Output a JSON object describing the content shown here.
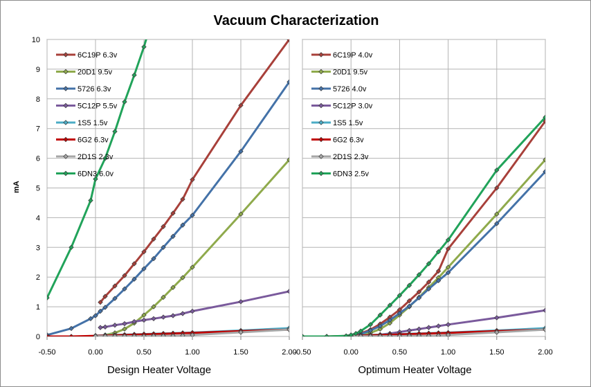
{
  "title": "Vacuum Characterization",
  "chart_data": {
    "type": "line",
    "title": "Vacuum Characterization",
    "ylabel": "mA",
    "ylim": [
      0,
      10
    ],
    "yticks": [
      0,
      1,
      2,
      3,
      4,
      5,
      6,
      7,
      8,
      9,
      10
    ],
    "xlim": [
      -0.5,
      2.0
    ],
    "xticks": [
      "-0.50",
      "0.00",
      "0.50",
      "1.00",
      "1.50",
      "2.00"
    ],
    "grid": true,
    "legend_position": "top-left",
    "panels": [
      {
        "xlabel": "Design Heater Voltage",
        "series": [
          {
            "name": "6C19P 6.3v",
            "color": "#a8403a",
            "x": [
              0.05,
              0.1,
              0.2,
              0.3,
              0.4,
              0.5,
              0.6,
              0.7,
              0.8,
              0.9,
              1.0,
              1.5,
              2.0
            ],
            "y": [
              1.15,
              1.35,
              1.7,
              2.05,
              2.45,
              2.85,
              3.28,
              3.7,
              4.15,
              4.62,
              5.28,
              7.78,
              10.0
            ]
          },
          {
            "name": "20D1 9.5v",
            "color": "#8faa4c",
            "x": [
              0.0,
              0.1,
              0.2,
              0.3,
              0.4,
              0.5,
              0.6,
              0.7,
              0.8,
              0.9,
              1.0,
              1.5,
              2.0
            ],
            "y": [
              0.0,
              0.05,
              0.12,
              0.25,
              0.45,
              0.72,
              1.0,
              1.32,
              1.65,
              1.98,
              2.33,
              4.12,
              5.95
            ]
          },
          {
            "name": "5726 6.3v",
            "color": "#4472a8",
            "x": [
              -0.5,
              -0.25,
              -0.05,
              0.0,
              0.05,
              0.1,
              0.2,
              0.3,
              0.4,
              0.5,
              0.6,
              0.7,
              0.8,
              0.9,
              1.0,
              1.5,
              2.0
            ],
            "y": [
              0.05,
              0.27,
              0.6,
              0.7,
              0.85,
              0.98,
              1.28,
              1.6,
              1.93,
              2.28,
              2.62,
              3.0,
              3.37,
              3.75,
              4.08,
              6.23,
              8.57
            ]
          },
          {
            "name": "5C12P 5.5v",
            "color": "#7a5a9c",
            "x": [
              0.05,
              0.1,
              0.2,
              0.3,
              0.4,
              0.5,
              0.6,
              0.7,
              0.8,
              0.9,
              1.0,
              1.5,
              2.0
            ],
            "y": [
              0.3,
              0.32,
              0.38,
              0.43,
              0.5,
              0.55,
              0.6,
              0.65,
              0.7,
              0.77,
              0.85,
              1.17,
              1.52
            ]
          },
          {
            "name": "1S5 1.5v",
            "color": "#4bacc6",
            "x": [
              0.0,
              0.1,
              0.2,
              0.3,
              0.4,
              0.5,
              0.6,
              0.7,
              0.8,
              0.9,
              1.0,
              1.5,
              2.0
            ],
            "y": [
              0.03,
              0.04,
              0.05,
              0.06,
              0.07,
              0.08,
              0.09,
              0.1,
              0.11,
              0.12,
              0.13,
              0.2,
              0.28
            ]
          },
          {
            "name": "6G2 6.3v",
            "color": "#c00000",
            "x": [
              -0.5,
              -0.25,
              0.0,
              0.1,
              0.2,
              0.3,
              0.4,
              0.5,
              0.6,
              0.7,
              0.8,
              0.9,
              1.0,
              1.5,
              2.0
            ],
            "y": [
              0.0,
              0.0,
              0.02,
              0.03,
              0.04,
              0.05,
              0.06,
              0.07,
              0.08,
              0.09,
              0.1,
              0.11,
              0.12,
              0.18,
              0.23
            ]
          },
          {
            "name": "2D1S 2.3v",
            "color": "#a6a6a6",
            "x": [
              0.0,
              0.1,
              0.2,
              0.3,
              0.4,
              0.5,
              0.6,
              0.7,
              0.8,
              0.9,
              1.0,
              1.5,
              2.0
            ],
            "y": [
              0.01,
              0.01,
              0.01,
              0.01,
              0.01,
              0.01,
              0.02,
              0.02,
              0.02,
              0.03,
              0.05,
              0.14,
              0.23
            ]
          },
          {
            "name": "6DN3 6.0v",
            "color": "#21a35a",
            "x": [
              -0.5,
              -0.25,
              -0.05,
              0.0,
              0.1,
              0.2,
              0.3,
              0.4,
              0.5,
              0.55
            ],
            "y": [
              1.3,
              3.0,
              4.58,
              5.3,
              6.0,
              6.9,
              7.9,
              8.8,
              9.75,
              10.3
            ]
          }
        ]
      },
      {
        "xlabel": "Optimum Heater Voltage",
        "series": [
          {
            "name": "6C19P 4.0v",
            "color": "#a8403a",
            "x": [
              0.0,
              0.05,
              0.1,
              0.2,
              0.3,
              0.4,
              0.5,
              0.6,
              0.7,
              0.8,
              0.9,
              1.0,
              1.5,
              2.0
            ],
            "y": [
              0.02,
              0.06,
              0.1,
              0.23,
              0.42,
              0.65,
              0.9,
              1.2,
              1.5,
              1.83,
              2.2,
              2.95,
              5.0,
              7.25
            ]
          },
          {
            "name": "20D1 9.5v",
            "color": "#8faa4c",
            "x": [
              0.0,
              0.1,
              0.2,
              0.3,
              0.4,
              0.5,
              0.6,
              0.7,
              0.8,
              0.9,
              1.0,
              1.5,
              2.0
            ],
            "y": [
              0.0,
              0.05,
              0.12,
              0.25,
              0.45,
              0.72,
              1.0,
              1.32,
              1.65,
              1.98,
              2.33,
              4.12,
              5.95
            ]
          },
          {
            "name": "5726 4.0v",
            "color": "#4472a8",
            "x": [
              0.0,
              0.05,
              0.1,
              0.2,
              0.3,
              0.4,
              0.5,
              0.6,
              0.7,
              0.8,
              0.9,
              1.0,
              1.5,
              2.0
            ],
            "y": [
              0.02,
              0.05,
              0.08,
              0.2,
              0.35,
              0.55,
              0.78,
              1.02,
              1.3,
              1.6,
              1.88,
              2.15,
              3.8,
              5.55
            ]
          },
          {
            "name": "5C12P 3.0v",
            "color": "#7a5a9c",
            "x": [
              0.0,
              0.1,
              0.2,
              0.3,
              0.4,
              0.5,
              0.6,
              0.7,
              0.8,
              0.9,
              1.0,
              1.5,
              2.0
            ],
            "y": [
              0.0,
              0.02,
              0.04,
              0.06,
              0.1,
              0.15,
              0.2,
              0.25,
              0.3,
              0.35,
              0.4,
              0.63,
              0.88
            ]
          },
          {
            "name": "1S5 1.5v",
            "color": "#4bacc6",
            "x": [
              0.0,
              0.1,
              0.2,
              0.3,
              0.4,
              0.5,
              0.6,
              0.7,
              0.8,
              0.9,
              1.0,
              1.5,
              2.0
            ],
            "y": [
              0.03,
              0.04,
              0.05,
              0.06,
              0.07,
              0.08,
              0.09,
              0.1,
              0.11,
              0.12,
              0.13,
              0.2,
              0.28
            ]
          },
          {
            "name": "6G2 6.3v",
            "color": "#c00000",
            "x": [
              -0.5,
              -0.25,
              0.0,
              0.1,
              0.2,
              0.3,
              0.4,
              0.5,
              0.6,
              0.7,
              0.8,
              0.9,
              1.0,
              1.5,
              2.0
            ],
            "y": [
              0.0,
              0.0,
              0.02,
              0.03,
              0.04,
              0.05,
              0.06,
              0.07,
              0.08,
              0.09,
              0.1,
              0.11,
              0.12,
              0.18,
              0.23
            ]
          },
          {
            "name": "2D1S 2.3v",
            "color": "#a6a6a6",
            "x": [
              0.0,
              0.1,
              0.2,
              0.3,
              0.4,
              0.5,
              0.6,
              0.7,
              0.8,
              0.9,
              1.0,
              1.5,
              2.0
            ],
            "y": [
              0.01,
              0.01,
              0.01,
              0.01,
              0.01,
              0.01,
              0.02,
              0.02,
              0.02,
              0.03,
              0.05,
              0.14,
              0.23
            ]
          },
          {
            "name": "6DN3 2.5v",
            "color": "#21a35a",
            "x": [
              -0.5,
              -0.25,
              -0.05,
              0.0,
              0.05,
              0.1,
              0.2,
              0.3,
              0.4,
              0.5,
              0.6,
              0.7,
              0.8,
              0.9,
              1.0,
              1.5,
              2.0
            ],
            "y": [
              0.0,
              0.0,
              0.02,
              0.05,
              0.1,
              0.18,
              0.4,
              0.72,
              1.05,
              1.38,
              1.72,
              2.08,
              2.45,
              2.85,
              3.25,
              5.6,
              7.38
            ]
          }
        ]
      }
    ]
  }
}
